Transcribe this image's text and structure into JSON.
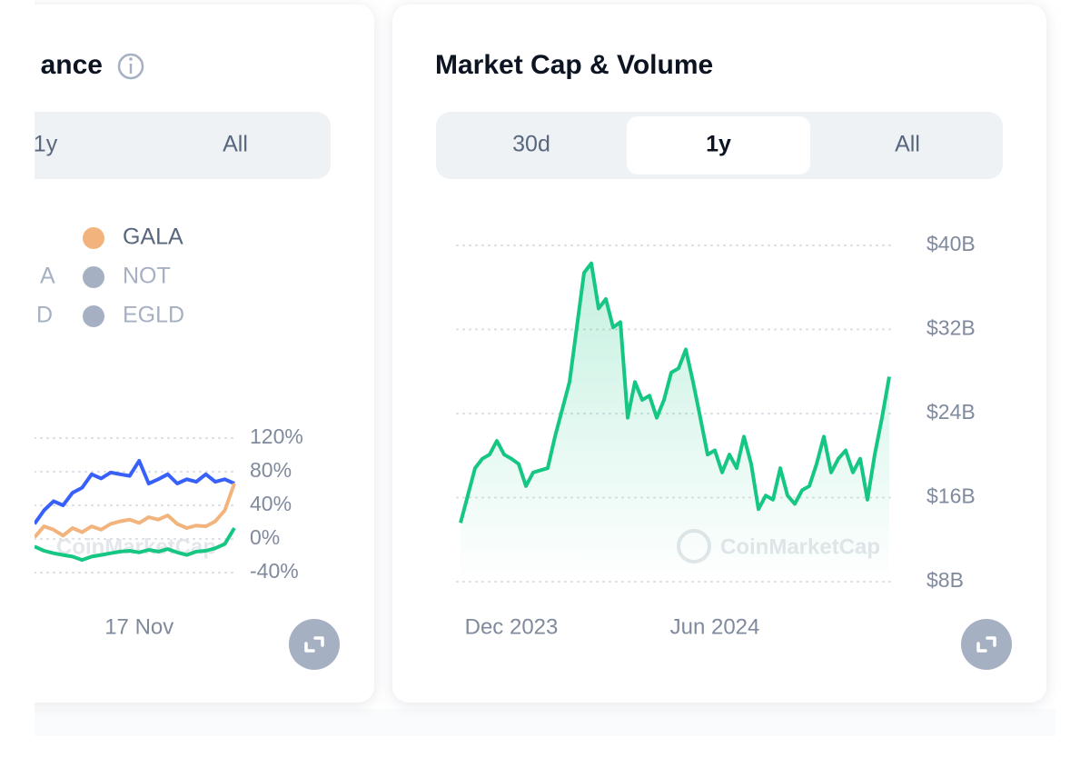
{
  "left_card": {
    "title": "ance",
    "tabs": [
      "1y",
      "All"
    ],
    "legend": [
      {
        "name": "GALA",
        "color": "#f2b47c",
        "active": true
      },
      {
        "name": "A",
        "color": "#a6b0c3",
        "active": false
      },
      {
        "name": "NOT",
        "color": "#a6b0c3",
        "active": false
      },
      {
        "name": "D",
        "color": "#a6b0c3",
        "active": false
      },
      {
        "name": "EGLD",
        "color": "#a6b0c3",
        "active": false
      }
    ]
  },
  "right_card": {
    "title": "Market Cap & Volume",
    "tabs": [
      "30d",
      "1y",
      "All"
    ],
    "active_tab": 1
  },
  "chart_data": [
    {
      "type": "line",
      "watermark": "CoinMarketCap",
      "categories": [
        null,
        null,
        null,
        null,
        null,
        null,
        null,
        null,
        null,
        null,
        null,
        "17 Nov",
        null,
        null,
        null,
        null,
        null,
        null,
        null,
        null,
        null,
        null
      ],
      "series": [
        {
          "color": "#3861fb",
          "values": [
            18,
            34,
            45,
            40,
            55,
            61,
            77,
            72,
            79,
            77,
            75,
            93,
            66,
            71,
            77,
            66,
            71,
            68,
            77,
            68,
            71,
            66
          ]
        },
        {
          "color": "#f2b47c",
          "values": [
            2,
            15,
            11,
            4,
            13,
            8,
            15,
            11,
            18,
            21,
            23,
            19,
            26,
            23,
            28,
            18,
            13,
            16,
            15,
            21,
            34,
            66
          ]
        },
        {
          "color": "#16c784",
          "values": [
            -9,
            -14,
            -17,
            -19,
            -21,
            -25,
            -21,
            -19,
            -17,
            -15,
            -14,
            -16,
            -13,
            -15,
            -12,
            -16,
            -19,
            -15,
            -14,
            -11,
            -6,
            13
          ]
        }
      ],
      "ylim": [
        -40,
        120
      ],
      "yticks": [
        {
          "value": 120,
          "label": "120%"
        },
        {
          "value": 80,
          "label": "80%"
        },
        {
          "value": 40,
          "label": "40%"
        },
        {
          "value": 0,
          "label": "0%"
        },
        {
          "value": -40,
          "label": "-40%"
        }
      ],
      "grid": true
    },
    {
      "type": "area",
      "watermark": "CoinMarketCap",
      "categories": [
        null,
        null,
        null,
        null,
        null,
        null,
        null,
        "Dec 2023",
        null,
        null,
        null,
        null,
        null,
        null,
        null,
        null,
        null,
        null,
        null,
        null,
        null,
        null,
        null,
        null,
        null,
        null,
        null,
        null,
        null,
        null,
        null,
        null,
        null,
        null,
        null,
        "Jun 2024",
        null,
        null,
        null,
        null,
        null,
        null,
        null,
        null,
        null,
        null,
        null,
        null,
        null,
        null,
        null,
        null,
        null,
        null,
        null,
        null,
        null,
        null,
        null,
        null
      ],
      "series": [
        {
          "color": "#16c784",
          "values": [
            13.6,
            16.2,
            18.8,
            19.7,
            20.1,
            21.4,
            20.1,
            19.7,
            19.2,
            17.1,
            18.4,
            18.6,
            18.8,
            21.8,
            24.4,
            27.0,
            32.2,
            37.4,
            38.3,
            34.0,
            34.9,
            32.2,
            32.7,
            23.6,
            27.0,
            25.3,
            25.7,
            23.6,
            25.3,
            27.9,
            28.3,
            30.1,
            27.0,
            23.6,
            20.1,
            20.5,
            18.4,
            20.1,
            18.8,
            21.8,
            19.2,
            14.9,
            16.2,
            15.8,
            18.8,
            16.2,
            15.4,
            16.7,
            17.1,
            19.2,
            21.8,
            18.4,
            19.7,
            20.5,
            18.4,
            19.7,
            15.8,
            20.1,
            23.6,
            27.5
          ]
        }
      ],
      "ylim": [
        8,
        40
      ],
      "yticks": [
        {
          "value": 40,
          "label": "$40B"
        },
        {
          "value": 32,
          "label": "$32B"
        },
        {
          "value": 24,
          "label": "$24B"
        },
        {
          "value": 16,
          "label": "$16B"
        },
        {
          "value": 8,
          "label": "$8B"
        }
      ],
      "grid": true
    }
  ]
}
